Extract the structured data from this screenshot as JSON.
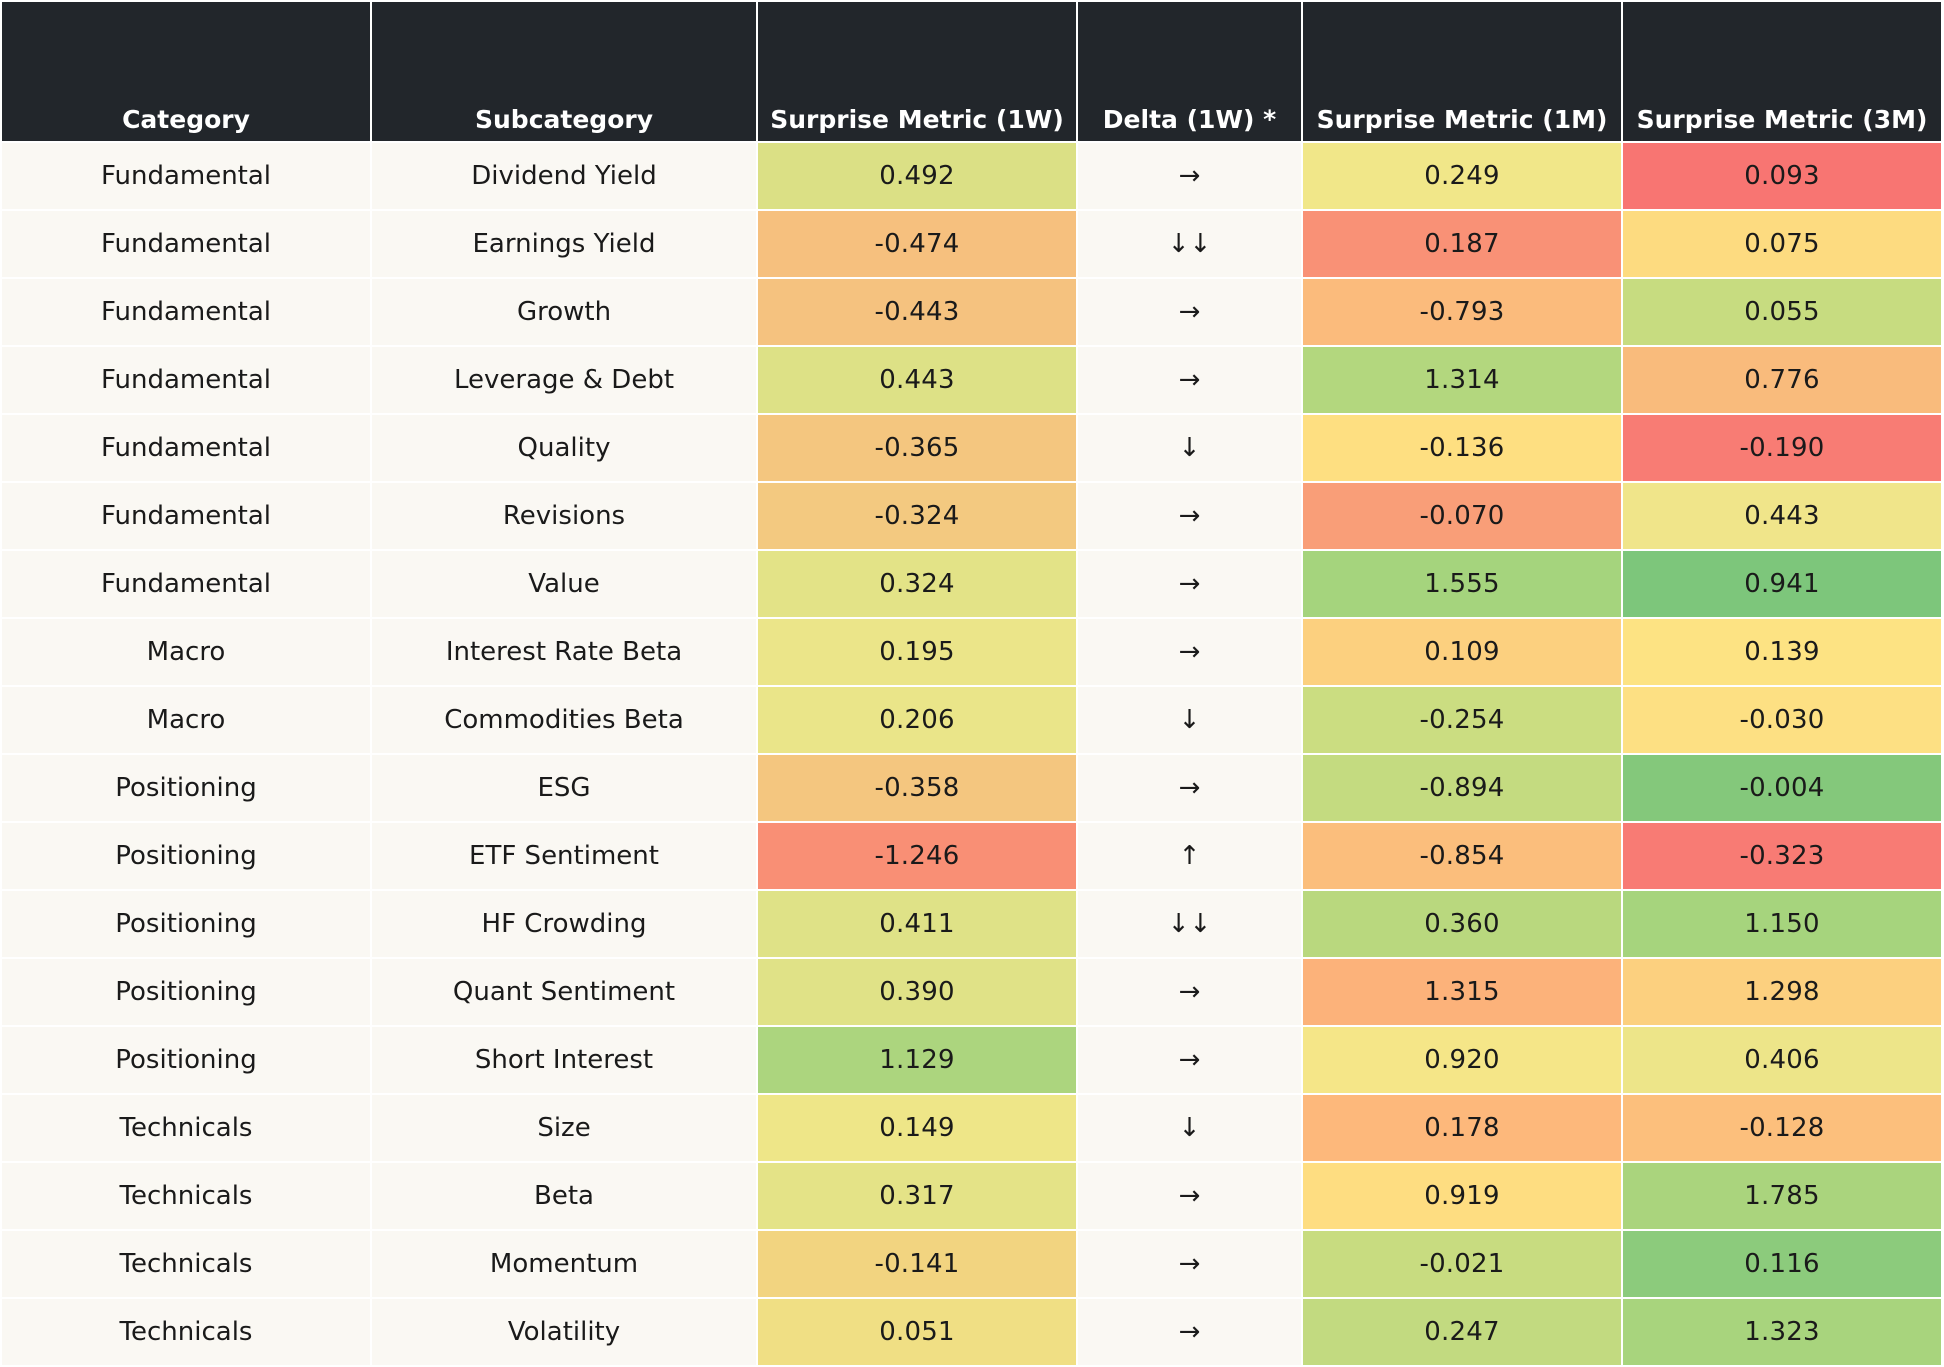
{
  "chart_data": {
    "type": "table",
    "columns": [
      "Category",
      "Subcategory",
      "Surprise Metric (1W)",
      "Delta (1W) *",
      "Surprise Metric (1M)",
      "Surprise Metric (3M)"
    ],
    "rows": [
      {
        "category": "Fundamental",
        "subcategory": "Dividend Yield",
        "m1w": "0.492",
        "delta": "→",
        "m1m": "0.249",
        "m3m": "0.093",
        "c1w": "#dbe085",
        "c1m": "#f1e789",
        "c3m": "#f87572"
      },
      {
        "category": "Fundamental",
        "subcategory": "Earnings Yield",
        "m1w": "-0.474",
        "delta": "↓↓",
        "m1m": "0.187",
        "m3m": "0.075",
        "c1w": "#f6c07e",
        "c1m": "#f99176",
        "c3m": "#fddb80"
      },
      {
        "category": "Fundamental",
        "subcategory": "Growth",
        "m1w": "-0.443",
        "delta": "→",
        "m1m": "-0.793",
        "m3m": "0.055",
        "c1w": "#f5c27f",
        "c1m": "#fbbb7c",
        "c3m": "#c7dc80"
      },
      {
        "category": "Fundamental",
        "subcategory": "Leverage & Debt",
        "m1w": "0.443",
        "delta": "→",
        "m1m": "1.314",
        "m3m": "0.776",
        "c1w": "#dde186",
        "c1m": "#b3d77e",
        "c3m": "#f9bb7c"
      },
      {
        "category": "Fundamental",
        "subcategory": "Quality",
        "m1w": "-0.365",
        "delta": "↓",
        "m1m": "-0.136",
        "m3m": "-0.190",
        "c1w": "#f4c67f",
        "c1m": "#fedf81",
        "c3m": "#f87c74"
      },
      {
        "category": "Fundamental",
        "subcategory": "Revisions",
        "m1w": "-0.324",
        "delta": "→",
        "m1m": "-0.070",
        "m3m": "0.443",
        "c1w": "#f3c980",
        "c1m": "#f99e78",
        "c3m": "#f0e58a"
      },
      {
        "category": "Fundamental",
        "subcategory": "Value",
        "m1w": "0.324",
        "delta": "→",
        "m1m": "1.555",
        "m3m": "0.941",
        "c1w": "#e3e387",
        "c1m": "#a5d47d",
        "c3m": "#7dc67b"
      },
      {
        "category": "Macro",
        "subcategory": "Interest Rate Beta",
        "m1w": "0.195",
        "delta": "→",
        "m1m": "0.109",
        "m3m": "0.139",
        "c1w": "#ebe589",
        "c1m": "#fcd07f",
        "c3m": "#fde383"
      },
      {
        "category": "Macro",
        "subcategory": "Commodities Beta",
        "m1w": "0.206",
        "delta": "↓",
        "m1m": "-0.254",
        "m3m": "-0.030",
        "c1w": "#eae589",
        "c1m": "#cbdd81",
        "c3m": "#fde083"
      },
      {
        "category": "Positioning",
        "subcategory": "ESG",
        "m1w": "-0.358",
        "delta": "→",
        "m1m": "-0.894",
        "m3m": "-0.004",
        "c1w": "#f4c67f",
        "c1m": "#c4db80",
        "c3m": "#84c87b"
      },
      {
        "category": "Positioning",
        "subcategory": "ETF Sentiment",
        "m1w": "-1.246",
        "delta": "↑",
        "m1m": "-0.854",
        "m3m": "-0.323",
        "c1w": "#f98f75",
        "c1m": "#fbbe7c",
        "c3m": "#f87b74"
      },
      {
        "category": "Positioning",
        "subcategory": "HF Crowding",
        "m1w": "0.411",
        "delta": "↓↓",
        "m1m": "0.360",
        "m3m": "1.150",
        "c1w": "#dfe287",
        "c1m": "#b9d87e",
        "c3m": "#a6d47d"
      },
      {
        "category": "Positioning",
        "subcategory": "Quant Sentiment",
        "m1w": "0.390",
        "delta": "→",
        "m1m": "1.315",
        "m3m": "1.298",
        "c1w": "#e0e287",
        "c1m": "#fcb27a",
        "c3m": "#fcd07f"
      },
      {
        "category": "Positioning",
        "subcategory": "Short Interest",
        "m1w": "1.129",
        "delta": "→",
        "m1m": "0.920",
        "m3m": "0.406",
        "c1w": "#acd57e",
        "c1m": "#f5e688",
        "c3m": "#ede589"
      },
      {
        "category": "Technicals",
        "subcategory": "Size",
        "m1w": "0.149",
        "delta": "↓",
        "m1m": "0.178",
        "m3m": "-0.128",
        "c1w": "#eee688",
        "c1m": "#fdb87b",
        "c3m": "#fcbf7c"
      },
      {
        "category": "Technicals",
        "subcategory": "Beta",
        "m1w": "0.317",
        "delta": "→",
        "m1m": "0.919",
        "m3m": "1.785",
        "c1w": "#e4e387",
        "c1m": "#fedd81",
        "c3m": "#aad47d"
      },
      {
        "category": "Technicals",
        "subcategory": "Momentum",
        "m1w": "-0.141",
        "delta": "→",
        "m1m": "-0.021",
        "m3m": "0.116",
        "c1w": "#f2d480",
        "c1m": "#c8dc80",
        "c3m": "#8ccb7c"
      },
      {
        "category": "Technicals",
        "subcategory": "Volatility",
        "m1w": "0.051",
        "delta": "→",
        "m1m": "0.247",
        "m3m": "1.323",
        "c1w": "#f0df84",
        "c1m": "#c2da80",
        "c3m": "#a8d47d"
      }
    ]
  }
}
